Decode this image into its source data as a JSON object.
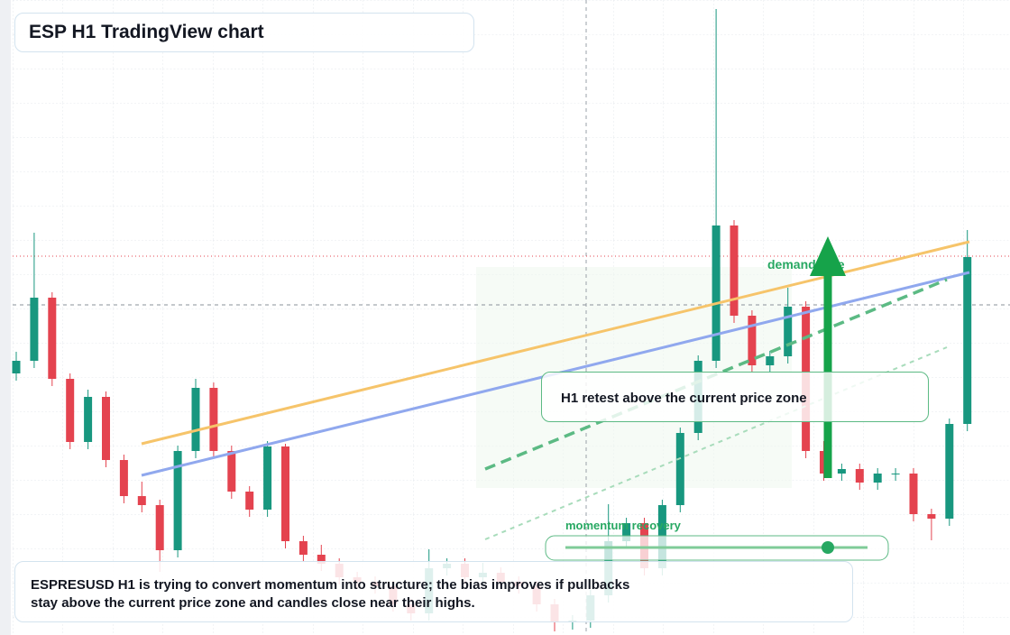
{
  "chart_data": {
    "type": "candlestick",
    "title": "ESP H1 TradingView chart",
    "caption": "ESPRESUSD H1 is trying to convert momentum into structure; the bias improves if pullbacks stay above the current price zone and candles close near their highs.",
    "annotations": {
      "retest": "H1 retest above the current price zone",
      "demand": "demand side",
      "momentum": "momentum recovery"
    },
    "up_color": "#18977f",
    "down_color": "#e4434f",
    "ylim": [
      0,
      704
    ],
    "open": [
      290,
      304,
      374,
      284,
      214,
      264,
      194,
      154,
      144,
      94,
      204,
      274,
      204,
      159,
      139,
      209,
      104,
      89,
      79,
      64,
      59,
      54,
      34,
      24,
      74,
      79,
      64,
      69,
      59,
      54,
      34,
      14,
      16,
      44,
      104,
      124,
      74,
      144,
      224,
      304,
      454,
      354,
      299,
      309,
      364,
      204,
      179,
      184,
      169,
      179,
      179,
      134,
      129,
      234
    ],
    "high": [
      314,
      446,
      380,
      290,
      272,
      270,
      200,
      170,
      150,
      210,
      284,
      280,
      210,
      165,
      215,
      212,
      110,
      100,
      85,
      70,
      65,
      60,
      40,
      95,
      85,
      85,
      80,
      75,
      65,
      60,
      40,
      22,
      50,
      145,
      130,
      130,
      150,
      230,
      310,
      694,
      460,
      360,
      315,
      385,
      370,
      215,
      190,
      190,
      185,
      185,
      185,
      140,
      240,
      449
    ],
    "low": [
      282,
      296,
      276,
      206,
      206,
      186,
      146,
      136,
      70,
      86,
      196,
      196,
      151,
      131,
      131,
      96,
      81,
      71,
      56,
      51,
      46,
      26,
      16,
      16,
      66,
      56,
      56,
      51,
      46,
      26,
      4,
      6,
      8,
      36,
      96,
      66,
      66,
      136,
      216,
      296,
      346,
      291,
      291,
      301,
      196,
      171,
      171,
      161,
      161,
      171,
      126,
      105,
      121,
      226
    ],
    "close": [
      304,
      374,
      284,
      214,
      264,
      194,
      154,
      144,
      94,
      204,
      274,
      204,
      159,
      139,
      209,
      104,
      89,
      79,
      64,
      59,
      54,
      34,
      24,
      74,
      79,
      64,
      69,
      59,
      54,
      34,
      14,
      16,
      44,
      104,
      124,
      74,
      144,
      224,
      304,
      454,
      354,
      299,
      309,
      364,
      204,
      179,
      184,
      169,
      179,
      179,
      134,
      129,
      234,
      419
    ]
  }
}
